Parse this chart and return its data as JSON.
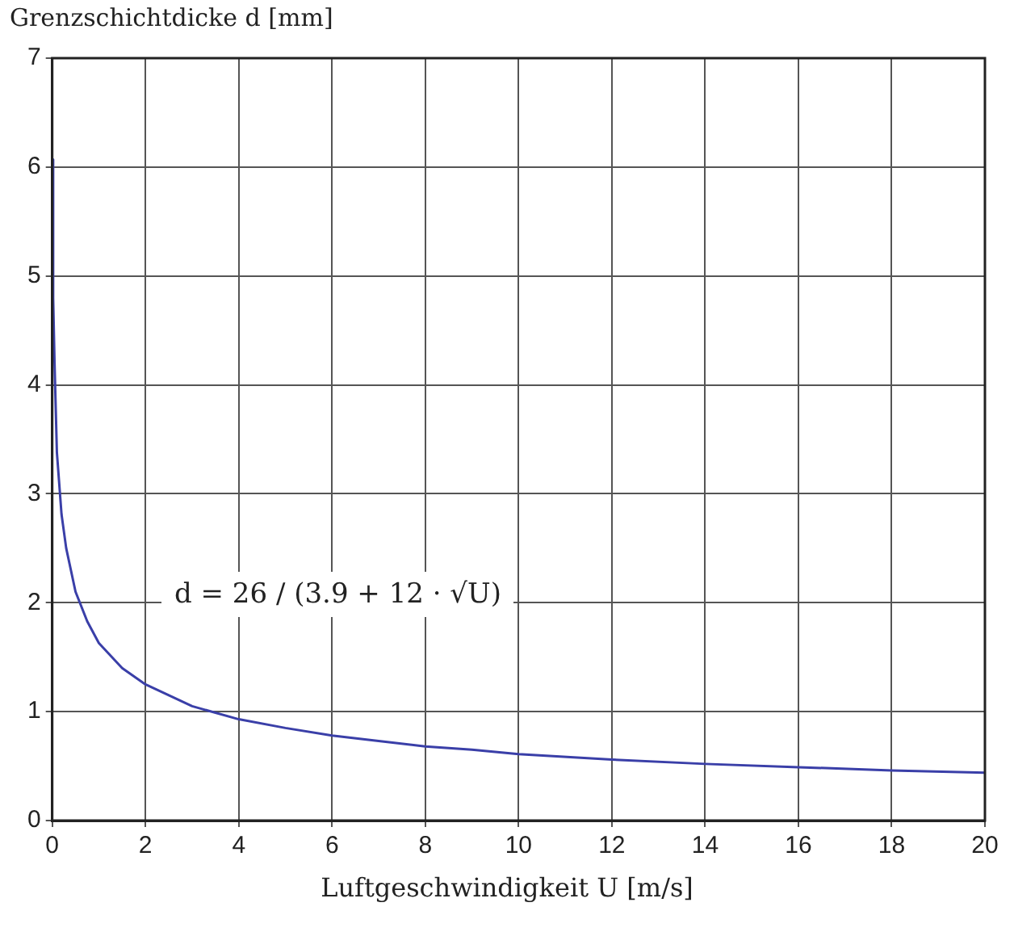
{
  "chart_data": {
    "type": "line",
    "ylabel": "Grenzschichtdicke d [mm]",
    "xlabel": "Luftgeschwindigkeit U [m/s]",
    "annotations": [
      "d = 26 / (3.9 + 12 · √U)"
    ],
    "xlim": [
      0,
      20
    ],
    "xticks": [
      0,
      2,
      4,
      6,
      8,
      10,
      12,
      14,
      16,
      18,
      20
    ],
    "ylim": [
      0,
      7
    ],
    "yticks": [
      0,
      1,
      2,
      3,
      4,
      5,
      6,
      7
    ],
    "grid": true,
    "marker": "none",
    "line_style": "solid",
    "series": [
      {
        "color": "#3a3fa8",
        "x": [
          0.001,
          0.02,
          0.05,
          0.1,
          0.2,
          0.3,
          0.5,
          0.75,
          1,
          1.5,
          2,
          3,
          4,
          5,
          6,
          7,
          8,
          9,
          10,
          12,
          14,
          16,
          18,
          20
        ],
        "values": [
          6.07,
          4.8,
          4.2,
          3.38,
          2.81,
          2.5,
          2.1,
          1.83,
          1.63,
          1.4,
          1.25,
          1.05,
          0.93,
          0.85,
          0.78,
          0.73,
          0.68,
          0.65,
          0.61,
          0.56,
          0.52,
          0.49,
          0.46,
          0.44
        ]
      }
    ]
  }
}
